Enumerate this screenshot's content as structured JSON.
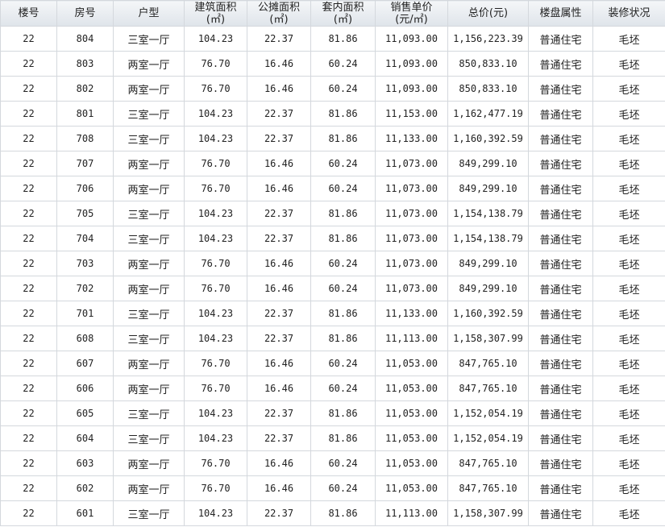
{
  "headers": [
    "楼号",
    "房号",
    "户型",
    "建筑面积\n(㎡)",
    "公摊面积\n(㎡)",
    "套内面积\n(㎡)",
    "销售单价\n(元/㎡)",
    "总价(元)",
    "楼盘属性",
    "装修状况"
  ],
  "rows": [
    [
      "22",
      "804",
      "三室一厅",
      "104.23",
      "22.37",
      "81.86",
      "11,093.00",
      "1,156,223.39",
      "普通住宅",
      "毛坯"
    ],
    [
      "22",
      "803",
      "两室一厅",
      "76.70",
      "16.46",
      "60.24",
      "11,093.00",
      "850,833.10",
      "普通住宅",
      "毛坯"
    ],
    [
      "22",
      "802",
      "两室一厅",
      "76.70",
      "16.46",
      "60.24",
      "11,093.00",
      "850,833.10",
      "普通住宅",
      "毛坯"
    ],
    [
      "22",
      "801",
      "三室一厅",
      "104.23",
      "22.37",
      "81.86",
      "11,153.00",
      "1,162,477.19",
      "普通住宅",
      "毛坯"
    ],
    [
      "22",
      "708",
      "三室一厅",
      "104.23",
      "22.37",
      "81.86",
      "11,133.00",
      "1,160,392.59",
      "普通住宅",
      "毛坯"
    ],
    [
      "22",
      "707",
      "两室一厅",
      "76.70",
      "16.46",
      "60.24",
      "11,073.00",
      "849,299.10",
      "普通住宅",
      "毛坯"
    ],
    [
      "22",
      "706",
      "两室一厅",
      "76.70",
      "16.46",
      "60.24",
      "11,073.00",
      "849,299.10",
      "普通住宅",
      "毛坯"
    ],
    [
      "22",
      "705",
      "三室一厅",
      "104.23",
      "22.37",
      "81.86",
      "11,073.00",
      "1,154,138.79",
      "普通住宅",
      "毛坯"
    ],
    [
      "22",
      "704",
      "三室一厅",
      "104.23",
      "22.37",
      "81.86",
      "11,073.00",
      "1,154,138.79",
      "普通住宅",
      "毛坯"
    ],
    [
      "22",
      "703",
      "两室一厅",
      "76.70",
      "16.46",
      "60.24",
      "11,073.00",
      "849,299.10",
      "普通住宅",
      "毛坯"
    ],
    [
      "22",
      "702",
      "两室一厅",
      "76.70",
      "16.46",
      "60.24",
      "11,073.00",
      "849,299.10",
      "普通住宅",
      "毛坯"
    ],
    [
      "22",
      "701",
      "三室一厅",
      "104.23",
      "22.37",
      "81.86",
      "11,133.00",
      "1,160,392.59",
      "普通住宅",
      "毛坯"
    ],
    [
      "22",
      "608",
      "三室一厅",
      "104.23",
      "22.37",
      "81.86",
      "11,113.00",
      "1,158,307.99",
      "普通住宅",
      "毛坯"
    ],
    [
      "22",
      "607",
      "两室一厅",
      "76.70",
      "16.46",
      "60.24",
      "11,053.00",
      "847,765.10",
      "普通住宅",
      "毛坯"
    ],
    [
      "22",
      "606",
      "两室一厅",
      "76.70",
      "16.46",
      "60.24",
      "11,053.00",
      "847,765.10",
      "普通住宅",
      "毛坯"
    ],
    [
      "22",
      "605",
      "三室一厅",
      "104.23",
      "22.37",
      "81.86",
      "11,053.00",
      "1,152,054.19",
      "普通住宅",
      "毛坯"
    ],
    [
      "22",
      "604",
      "三室一厅",
      "104.23",
      "22.37",
      "81.86",
      "11,053.00",
      "1,152,054.19",
      "普通住宅",
      "毛坯"
    ],
    [
      "22",
      "603",
      "两室一厅",
      "76.70",
      "16.46",
      "60.24",
      "11,053.00",
      "847,765.10",
      "普通住宅",
      "毛坯"
    ],
    [
      "22",
      "602",
      "两室一厅",
      "76.70",
      "16.46",
      "60.24",
      "11,053.00",
      "847,765.10",
      "普通住宅",
      "毛坯"
    ],
    [
      "22",
      "601",
      "三室一厅",
      "104.23",
      "22.37",
      "81.86",
      "11,113.00",
      "1,158,307.99",
      "普通住宅",
      "毛坯"
    ]
  ]
}
